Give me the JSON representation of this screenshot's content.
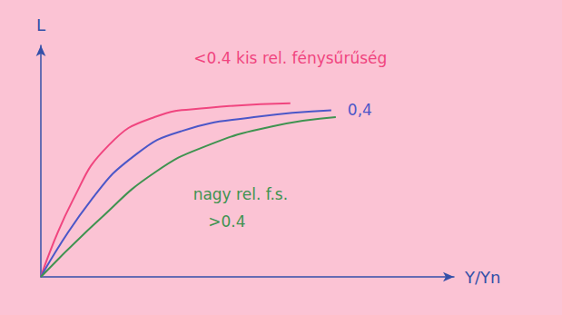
{
  "chart_data": {
    "type": "line",
    "x_label": "Y/Yn",
    "y_label": "L",
    "xlim": [
      0,
      1
    ],
    "ylim": [
      0,
      100
    ],
    "grid": false,
    "tick_labels": false,
    "series": [
      {
        "color": "#f0457f",
        "x": [
          0,
          0.077,
          0.165,
          0.275,
          0.407,
          0.604
        ],
        "values": [
          0,
          33,
          57,
          69,
          73,
          75
        ]
      },
      {
        "color": "#4b57c8",
        "x": [
          0,
          0.121,
          0.231,
          0.341,
          0.516,
          0.703
        ],
        "values": [
          0,
          33,
          53,
          63,
          69,
          72
        ]
      },
      {
        "color": "#3f9350",
        "x": [
          0,
          0.143,
          0.275,
          0.407,
          0.56,
          0.714
        ],
        "values": [
          0,
          25,
          45,
          57,
          65,
          69
        ]
      }
    ],
    "annotations": [
      {
        "text": "<0.4 kis rel. fénysűrűség",
        "series": 0
      },
      {
        "text": "0,4",
        "series": 1
      },
      {
        "text": "nagy rel. f.s.",
        "series": 2
      },
      {
        "text": ">0.4",
        "series": 2
      }
    ]
  }
}
